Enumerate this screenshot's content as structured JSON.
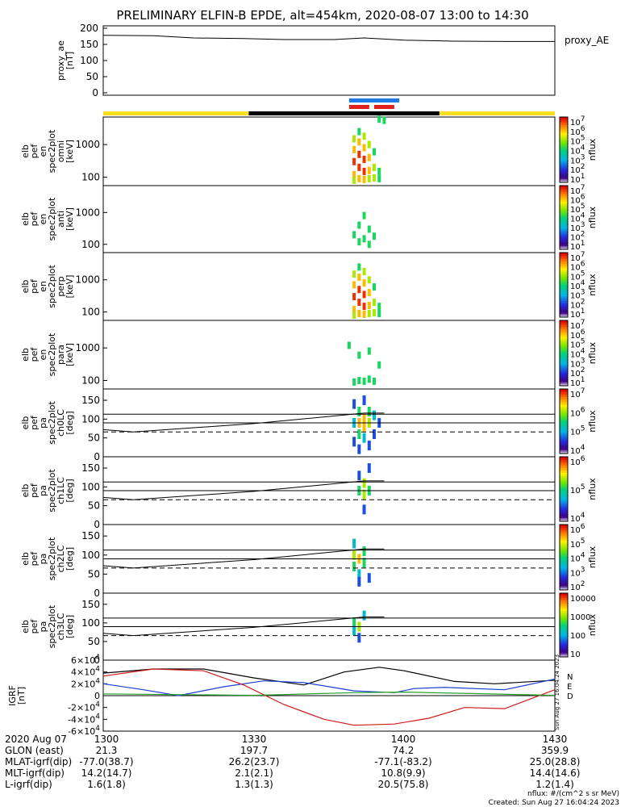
{
  "title": "PRELIMINARY ELFIN-B EPDE, alt=454km, 2020-08-07 13:00 to 14:30",
  "colors": {
    "bar_yellow": "#ffe020",
    "bar_black": "#000000",
    "bar_blue": "#1e7be6",
    "bar_red": "#e0201c",
    "line_black": "#000000",
    "line_blue": "#1a3fd0",
    "line_red": "#d01a1a",
    "line_green": "#2aa02a"
  },
  "footer": {
    "rows": [
      {
        "label": "2020 Aug 07",
        "values": [
          "1300",
          "1330",
          "1400",
          "1430"
        ]
      },
      {
        "label": "GLON (east)",
        "values": [
          "21.3",
          "197.7",
          "74.2",
          "359.9"
        ]
      },
      {
        "label": "MLAT-igrf(dip)",
        "values": [
          "-77.0(38.7)",
          "26.2(23.7)",
          "-77.1(-83.2)",
          "25.0(28.8)"
        ]
      },
      {
        "label": "MLT-igrf(dip)",
        "values": [
          "14.2(14.7)",
          "2.1(2.1)",
          "10.8(9.9)",
          "14.4(14.6)"
        ]
      },
      {
        "label": "L-igrf(dip)",
        "values": [
          "1.6(1.8)",
          "1.3(1.3)",
          "20.5(75.8)",
          "1.2(1.4)"
        ]
      }
    ],
    "nflux_units": "nflux: #/(cm^2 s sr MeV)",
    "created": "Created: Sun Aug 27 16:04:24 2023",
    "stamp": "Sun Aug 27 16:04:24 2023"
  },
  "chart_data": [
    {
      "type": "line",
      "id": "proxy_ae",
      "ylabel": [
        "proxy_ae",
        "[nT]"
      ],
      "legend": "proxy_AE",
      "xlim": [
        "13:00",
        "14:30"
      ],
      "ylim": [
        0,
        200
      ],
      "yticks": [
        "0",
        "50",
        "100",
        "150",
        "200"
      ],
      "series": [
        {
          "name": "proxy_AE",
          "x": [
            "13:00",
            "13:10",
            "13:18",
            "13:28",
            "13:36",
            "13:46",
            "13:52",
            "14:00",
            "14:10",
            "14:20",
            "14:30"
          ],
          "y": [
            178,
            177,
            170,
            168,
            165,
            165,
            170,
            163,
            160,
            159,
            159
          ]
        }
      ]
    },
    {
      "type": "bar",
      "id": "status_bars",
      "segments": [
        {
          "row": "orbit",
          "start": "13:00",
          "end": "13:29",
          "color": "yellow"
        },
        {
          "row": "orbit",
          "start": "13:29",
          "end": "14:07",
          "color": "black"
        },
        {
          "row": "orbit",
          "start": "14:07",
          "end": "14:30",
          "color": "yellow"
        },
        {
          "row": "science_a",
          "start": "13:49",
          "end": "13:59",
          "color": "blue"
        },
        {
          "row": "science_b",
          "start": "13:49",
          "end": "13:53",
          "color": "red"
        },
        {
          "row": "science_b",
          "start": "13:54",
          "end": "13:58",
          "color": "red"
        }
      ]
    },
    {
      "type": "heatmap",
      "id": "en_omni",
      "ylabel": [
        "elb",
        "pef",
        "en",
        "spec2plot",
        "omni",
        "[keV]"
      ],
      "ylog": true,
      "ylim": [
        55,
        7000
      ],
      "yticks": [
        "100",
        "1000"
      ],
      "colorbar": {
        "label": "nflux",
        "range": "10^1 - 10^7",
        "ticks": [
          "10^7",
          "10^6",
          "10^5",
          "10^4",
          "10^3",
          "10^2",
          "10^1"
        ]
      },
      "active_x": [
        "13:49",
        "13:56"
      ],
      "points": [
        [
          "13:50",
          1500,
          4
        ],
        [
          "13:50",
          700,
          5
        ],
        [
          "13:50",
          300,
          6
        ],
        [
          "13:50",
          120,
          5
        ],
        [
          "13:50",
          80,
          4
        ],
        [
          "13:51",
          2500,
          3
        ],
        [
          "13:51",
          1200,
          5
        ],
        [
          "13:51",
          500,
          6
        ],
        [
          "13:51",
          200,
          6
        ],
        [
          "13:51",
          90,
          5
        ],
        [
          "13:52",
          1800,
          4
        ],
        [
          "13:52",
          800,
          5
        ],
        [
          "13:52",
          350,
          6
        ],
        [
          "13:52",
          150,
          6
        ],
        [
          "13:52",
          85,
          5
        ],
        [
          "13:53",
          1000,
          4
        ],
        [
          "13:53",
          400,
          5
        ],
        [
          "13:53",
          160,
          5
        ],
        [
          "13:53",
          90,
          4
        ],
        [
          "13:54",
          600,
          3
        ],
        [
          "13:54",
          200,
          4
        ],
        [
          "13:54",
          95,
          4
        ],
        [
          "13:55",
          150,
          3
        ],
        [
          "13:55",
          90,
          3
        ],
        [
          "13:55",
          6000,
          3
        ],
        [
          "13:56",
          5500,
          3
        ]
      ]
    },
    {
      "type": "heatmap",
      "id": "en_anti",
      "ylabel": [
        "elb",
        "pef",
        "en",
        "spec2plot",
        "anti",
        "[keV]"
      ],
      "ylog": true,
      "ylim": [
        55,
        7000
      ],
      "yticks": [
        "100",
        "1000"
      ],
      "colorbar": {
        "label": "nflux",
        "range": "10^1 - 10^7",
        "ticks": [
          "10^7",
          "10^6",
          "10^5",
          "10^4",
          "10^3",
          "10^2",
          "10^1"
        ]
      },
      "active_x": [
        "13:50",
        "13:55"
      ],
      "points": [
        [
          "13:50",
          200,
          3
        ],
        [
          "13:51",
          400,
          3
        ],
        [
          "13:51",
          120,
          3
        ],
        [
          "13:52",
          800,
          3
        ],
        [
          "13:52",
          150,
          3
        ],
        [
          "13:53",
          300,
          3
        ],
        [
          "13:53",
          100,
          3
        ],
        [
          "13:54",
          180,
          3
        ]
      ]
    },
    {
      "type": "heatmap",
      "id": "en_perp",
      "ylabel": [
        "elb",
        "pef",
        "en",
        "spec2plot",
        "perp",
        "[keV]"
      ],
      "ylog": true,
      "ylim": [
        55,
        7000
      ],
      "yticks": [
        "100",
        "1000"
      ],
      "colorbar": {
        "label": "nflux",
        "range": "10^1 - 10^7",
        "ticks": [
          "10^7",
          "10^6",
          "10^5",
          "10^4",
          "10^3",
          "10^2",
          "10^1"
        ]
      },
      "active_x": [
        "13:49",
        "13:56"
      ],
      "points": [
        [
          "13:50",
          1500,
          4
        ],
        [
          "13:50",
          700,
          5
        ],
        [
          "13:50",
          300,
          6
        ],
        [
          "13:50",
          120,
          5
        ],
        [
          "13:50",
          80,
          4
        ],
        [
          "13:51",
          2500,
          3
        ],
        [
          "13:51",
          1200,
          5
        ],
        [
          "13:51",
          500,
          6
        ],
        [
          "13:51",
          200,
          6
        ],
        [
          "13:51",
          90,
          5
        ],
        [
          "13:52",
          1800,
          4
        ],
        [
          "13:52",
          800,
          5
        ],
        [
          "13:52",
          350,
          6
        ],
        [
          "13:52",
          150,
          6
        ],
        [
          "13:52",
          85,
          5
        ],
        [
          "13:53",
          1000,
          4
        ],
        [
          "13:53",
          400,
          5
        ],
        [
          "13:53",
          160,
          5
        ],
        [
          "13:53",
          90,
          4
        ],
        [
          "13:54",
          600,
          3
        ],
        [
          "13:54",
          200,
          4
        ],
        [
          "13:54",
          95,
          4
        ],
        [
          "13:55",
          150,
          3
        ],
        [
          "13:55",
          90,
          3
        ]
      ]
    },
    {
      "type": "heatmap",
      "id": "en_para",
      "ylabel": [
        "elb",
        "pef",
        "en",
        "spec2plot",
        "para",
        "[keV]"
      ],
      "ylog": true,
      "ylim": [
        55,
        7000
      ],
      "yticks": [
        "100",
        "1000"
      ],
      "colorbar": {
        "label": "nflux",
        "range": "10^1 - 10^7",
        "ticks": [
          "10^7",
          "10^6",
          "10^5",
          "10^4",
          "10^3",
          "10^2",
          "10^1"
        ]
      },
      "active_x": [
        "13:49",
        "13:56"
      ],
      "points": [
        [
          "13:49",
          1200,
          3
        ],
        [
          "13:50",
          90,
          3
        ],
        [
          "13:51",
          600,
          3
        ],
        [
          "13:51",
          100,
          3
        ],
        [
          "13:52",
          95,
          3
        ],
        [
          "13:53",
          800,
          3
        ],
        [
          "13:53",
          110,
          3
        ],
        [
          "13:54",
          95,
          3
        ],
        [
          "13:55",
          300,
          3
        ]
      ]
    },
    {
      "type": "heatmap",
      "id": "pa_ch0",
      "ylabel": [
        "elb",
        "pef",
        "pa",
        "spec2plot",
        "ch0LC",
        "[deg]"
      ],
      "ylim": [
        0,
        180
      ],
      "yticks": [
        "0",
        "50",
        "100",
        "150"
      ],
      "colorbar": {
        "label": "nflux",
        "ticks": [
          "10^7",
          "10^6",
          "10^5",
          "10^4"
        ]
      },
      "points": [
        [
          "13:50",
          140,
          1
        ],
        [
          "13:50",
          90,
          2
        ],
        [
          "13:50",
          40,
          1
        ],
        [
          "13:51",
          120,
          3
        ],
        [
          "13:51",
          90,
          5
        ],
        [
          "13:51",
          60,
          3
        ],
        [
          "13:51",
          20,
          1
        ],
        [
          "13:52",
          150,
          1
        ],
        [
          "13:52",
          100,
          5
        ],
        [
          "13:52",
          80,
          5
        ],
        [
          "13:52",
          50,
          2
        ],
        [
          "13:53",
          120,
          3
        ],
        [
          "13:53",
          90,
          4
        ],
        [
          "13:53",
          30,
          1
        ],
        [
          "13:54",
          110,
          2
        ],
        [
          "13:54",
          60,
          1
        ],
        [
          "13:55",
          90,
          1
        ]
      ],
      "lines": {
        "solid_levels": [
          113,
          90
        ],
        "dashed_level": 66,
        "curve": {
          "x": [
            "13:00",
            "13:06",
            "13:30",
            "13:52",
            "13:56"
          ],
          "y": [
            72,
            66,
            88,
            116,
            116
          ]
        }
      }
    },
    {
      "type": "heatmap",
      "id": "pa_ch1",
      "ylabel": [
        "elb",
        "pef",
        "pa",
        "spec2plot",
        "ch1LC",
        "[deg]"
      ],
      "ylim": [
        0,
        180
      ],
      "yticks": [
        "0",
        "50",
        "100",
        "150"
      ],
      "colorbar": {
        "label": "nflux",
        "ticks": [
          "10^6",
          "10^5",
          "10^4"
        ]
      },
      "points": [
        [
          "13:51",
          130,
          1
        ],
        [
          "13:51",
          90,
          3
        ],
        [
          "13:52",
          110,
          4
        ],
        [
          "13:52",
          80,
          4
        ],
        [
          "13:52",
          40,
          1
        ],
        [
          "13:53",
          90,
          3
        ],
        [
          "13:53",
          150,
          1
        ]
      ],
      "lines": {
        "solid_levels": [
          113,
          90
        ],
        "dashed_level": 66,
        "curve": {
          "x": [
            "13:00",
            "13:06",
            "13:30",
            "13:52",
            "13:56"
          ],
          "y": [
            72,
            66,
            88,
            116,
            116
          ]
        }
      }
    },
    {
      "type": "heatmap",
      "id": "pa_ch2",
      "ylabel": [
        "elb",
        "pef",
        "pa",
        "spec2plot",
        "ch2LC",
        "[deg]"
      ],
      "ylim": [
        0,
        180
      ],
      "yticks": [
        "0",
        "50",
        "100",
        "150"
      ],
      "colorbar": {
        "label": "nflux",
        "ticks": [
          "10^6",
          "10^5",
          "10^4",
          "10^3",
          "10^2"
        ]
      },
      "points": [
        [
          "13:50",
          100,
          4
        ],
        [
          "13:50",
          70,
          3
        ],
        [
          "13:50",
          130,
          2
        ],
        [
          "13:51",
          90,
          5
        ],
        [
          "13:51",
          50,
          2
        ],
        [
          "13:51",
          30,
          1
        ],
        [
          "13:52",
          110,
          3
        ],
        [
          "13:52",
          80,
          3
        ],
        [
          "13:53",
          40,
          1
        ]
      ],
      "lines": {
        "solid_levels": [
          113,
          90
        ],
        "dashed_level": 66,
        "curve": {
          "x": [
            "13:00",
            "13:06",
            "13:30",
            "13:52",
            "13:56"
          ],
          "y": [
            72,
            66,
            88,
            116,
            116
          ]
        }
      }
    },
    {
      "type": "heatmap",
      "id": "pa_ch3",
      "ylabel": [
        "elb",
        "pef",
        "pa",
        "spec2plot",
        "ch3LC",
        "[deg]"
      ],
      "ylim": [
        0,
        180
      ],
      "yticks": [
        "0",
        "50",
        "100",
        "150"
      ],
      "colorbar": {
        "label": "nflux",
        "ticks": [
          "10000",
          "1000",
          "100",
          "10"
        ]
      },
      "points": [
        [
          "13:50",
          100,
          3
        ],
        [
          "13:50",
          80,
          2
        ],
        [
          "13:51",
          90,
          4
        ],
        [
          "13:51",
          60,
          1
        ],
        [
          "13:52",
          120,
          2
        ]
      ],
      "lines": {
        "solid_levels": [
          113,
          90
        ],
        "dashed_level": 66,
        "curve": {
          "x": [
            "13:00",
            "13:06",
            "13:30",
            "13:52",
            "13:56"
          ],
          "y": [
            72,
            66,
            88,
            116,
            116
          ]
        }
      }
    },
    {
      "type": "line",
      "id": "igrf",
      "ylabel": [
        "IGRF",
        "[nT]"
      ],
      "ylim": [
        -60000,
        60000
      ],
      "yticks": [
        "-6×10^4",
        "-4×10^4",
        "-2×10^4",
        "0",
        "2×10^4",
        "4×10^4",
        "6×10^4"
      ],
      "legend_labels": [
        "N",
        "E",
        "D"
      ],
      "series": [
        {
          "name": "black",
          "x": [
            "13:00",
            "13:10",
            "13:20",
            "13:30",
            "13:40",
            "13:48",
            "13:55",
            "14:00",
            "14:10",
            "14:18",
            "14:30"
          ],
          "y": [
            38000,
            45000,
            45000,
            30000,
            18000,
            40000,
            48000,
            42000,
            24000,
            20000,
            26000
          ]
        },
        {
          "name": "blue",
          "x": [
            "13:00",
            "13:08",
            "13:15",
            "13:24",
            "13:32",
            "13:40",
            "13:50",
            "13:58",
            "14:02",
            "14:08",
            "14:20",
            "14:30"
          ],
          "y": [
            20000,
            10000,
            0,
            15000,
            25000,
            22000,
            8000,
            5000,
            12000,
            14000,
            10000,
            28000
          ]
        },
        {
          "name": "red",
          "x": [
            "13:00",
            "13:10",
            "13:20",
            "13:28",
            "13:36",
            "13:44",
            "13:50",
            "13:58",
            "14:05",
            "14:12",
            "14:20",
            "14:30"
          ],
          "y": [
            33000,
            45000,
            42000,
            18000,
            -15000,
            -40000,
            -50000,
            -48000,
            -38000,
            -20000,
            -22000,
            10000
          ]
        },
        {
          "name": "green",
          "x": [
            "13:00",
            "13:30",
            "13:50",
            "14:00",
            "14:30"
          ],
          "y": [
            3000,
            500,
            5000,
            6000,
            500
          ]
        }
      ]
    }
  ]
}
